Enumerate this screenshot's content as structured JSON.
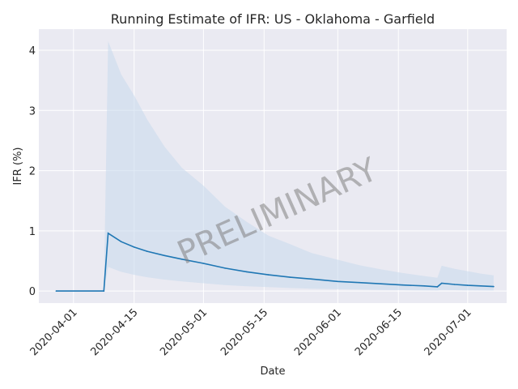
{
  "chart_data": {
    "type": "line",
    "title": "Running Estimate of IFR: US - Oklahoma - Garfield",
    "xlabel": "Date",
    "ylabel": "IFR (%)",
    "watermark": "PRELIMINARY",
    "xlim": [
      "2020-03-24",
      "2020-07-10"
    ],
    "ylim": [
      -0.2,
      4.35
    ],
    "x_ticks": [
      "2020-04-01",
      "2020-04-15",
      "2020-05-01",
      "2020-05-15",
      "2020-06-01",
      "2020-06-15",
      "2020-07-01"
    ],
    "y_ticks": [
      0,
      1,
      2,
      3,
      4
    ],
    "grid": true,
    "colors": {
      "line": "#1f77b4",
      "band": "#c6d9ec",
      "background": "#eaeaf2",
      "grid": "#ffffff"
    },
    "series": [
      {
        "x": [
          "2020-03-28",
          "2020-04-08",
          "2020-04-09",
          "2020-04-12",
          "2020-04-15",
          "2020-04-18",
          "2020-04-22",
          "2020-04-26",
          "2020-05-01",
          "2020-05-06",
          "2020-05-11",
          "2020-05-16",
          "2020-05-21",
          "2020-05-26",
          "2020-06-01",
          "2020-06-06",
          "2020-06-11",
          "2020-06-16",
          "2020-06-21",
          "2020-06-24",
          "2020-06-25",
          "2020-06-28",
          "2020-07-01",
          "2020-07-04",
          "2020-07-07"
        ],
        "y": [
          0,
          0,
          0.96,
          0.82,
          0.73,
          0.66,
          0.59,
          0.53,
          0.46,
          0.38,
          0.32,
          0.27,
          0.23,
          0.2,
          0.16,
          0.14,
          0.12,
          0.1,
          0.085,
          0.07,
          0.13,
          0.11,
          0.095,
          0.085,
          0.075
        ],
        "upper": [
          0,
          0,
          4.15,
          3.6,
          3.25,
          2.85,
          2.4,
          2.05,
          1.75,
          1.4,
          1.15,
          0.92,
          0.78,
          0.63,
          0.52,
          0.43,
          0.36,
          0.3,
          0.25,
          0.22,
          0.42,
          0.37,
          0.33,
          0.29,
          0.26
        ],
        "lower": [
          0,
          0,
          0.4,
          0.32,
          0.27,
          0.23,
          0.19,
          0.16,
          0.13,
          0.1,
          0.08,
          0.065,
          0.05,
          0.04,
          0.03,
          0.025,
          0.02,
          0.015,
          0.012,
          0.01,
          0.018,
          0.015,
          0.012,
          0.01,
          0.008
        ]
      }
    ]
  }
}
